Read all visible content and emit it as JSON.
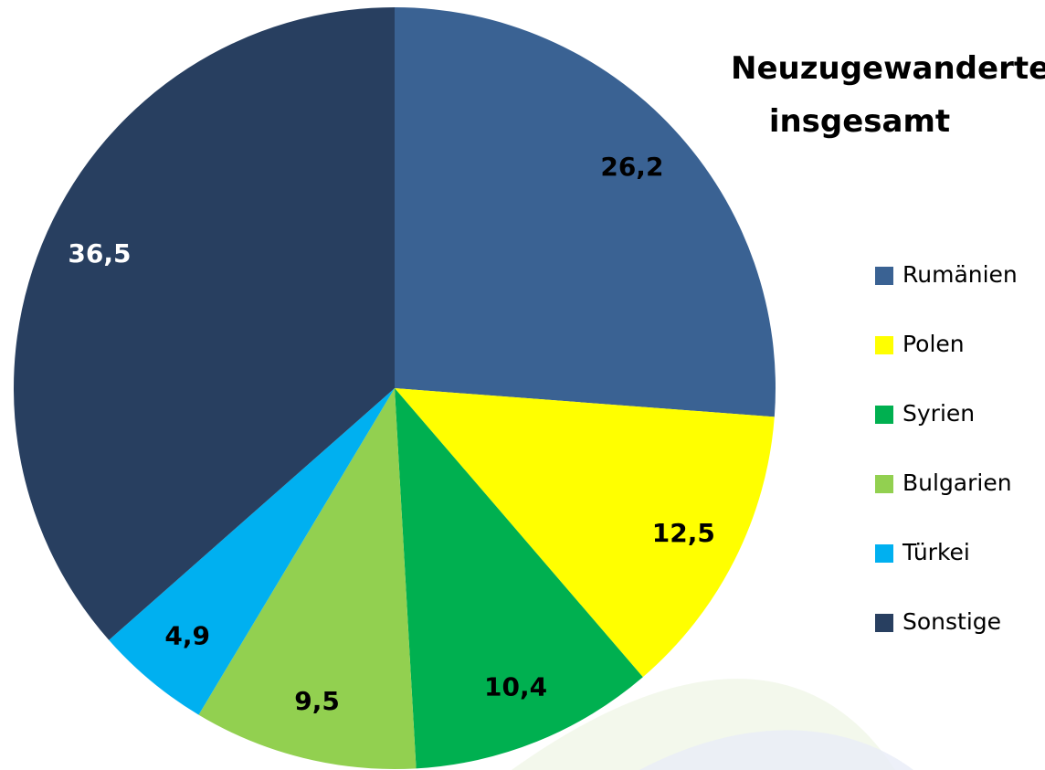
{
  "chart_data": {
    "type": "pie",
    "title": "Neuzugewanderte insgesamt",
    "categories": [
      "Rumänien",
      "Polen",
      "Syrien",
      "Bulgarien",
      "Türkei",
      "Sonstige"
    ],
    "values": [
      26.2,
      12.5,
      10.4,
      9.5,
      4.9,
      36.5
    ],
    "value_labels": [
      "26,2",
      "12,5",
      "10,4",
      "9,5",
      "4,9",
      "36,5"
    ],
    "colors": [
      "#3a6293",
      "#ffff00",
      "#00b050",
      "#92d050",
      "#00b0f0",
      "#283f60"
    ],
    "legend": "right"
  }
}
